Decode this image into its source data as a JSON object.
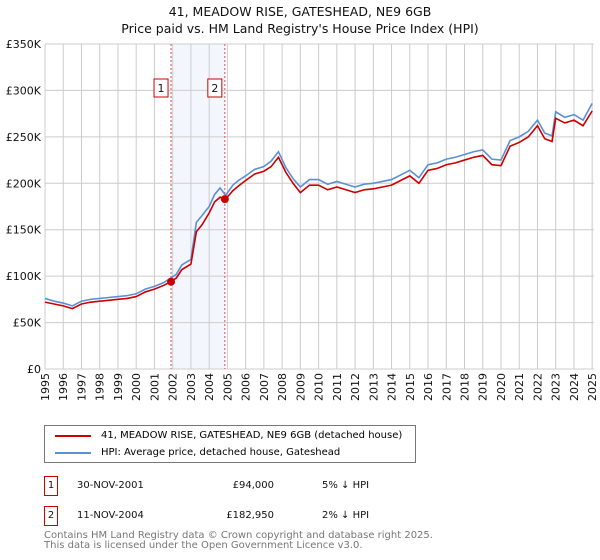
{
  "chart_data": {
    "type": "line",
    "title": "41, MEADOW RISE, GATESHEAD, NE9 6GB",
    "subtitle": "Price paid vs. HM Land Registry's House Price Index (HPI)",
    "xlim": [
      1995,
      2025.1
    ],
    "ylim": [
      0,
      350000
    ],
    "yticks": [
      0,
      50000,
      100000,
      150000,
      200000,
      250000,
      300000,
      350000
    ],
    "ytick_labels": [
      "£0",
      "£50K",
      "£100K",
      "£150K",
      "£200K",
      "£250K",
      "£300K",
      "£350K"
    ],
    "xticks": [
      "1995",
      "1996",
      "1997",
      "1998",
      "1999",
      "2000",
      "2001",
      "2002",
      "2003",
      "2004",
      "2005",
      "2006",
      "2007",
      "2008",
      "2009",
      "2010",
      "2011",
      "2012",
      "2013",
      "2014",
      "2015",
      "2016",
      "2017",
      "2018",
      "2019",
      "2020",
      "2021",
      "2022",
      "2023",
      "2024",
      "2025"
    ],
    "grid": true,
    "x": [
      1995,
      1995.5,
      1996,
      1996.5,
      1997,
      1997.5,
      1998,
      1998.5,
      1999,
      1999.5,
      2000,
      2000.5,
      2001,
      2001.5,
      2001.9,
      2002.2,
      2002.5,
      2003,
      2003.3,
      2003.6,
      2004,
      2004.3,
      2004.6,
      2004.9,
      2005.3,
      2005.6,
      2006,
      2006.5,
      2007,
      2007.4,
      2007.8,
      2008.2,
      2008.6,
      2009,
      2009.5,
      2010,
      2010.5,
      2011,
      2011.5,
      2012,
      2012.5,
      2013,
      2013.5,
      2014,
      2014.5,
      2015,
      2015.5,
      2016,
      2016.5,
      2017,
      2017.5,
      2018,
      2018.5,
      2019,
      2019.5,
      2020,
      2020.5,
      2021,
      2021.5,
      2022,
      2022.4,
      2022.8,
      2023,
      2023.5,
      2024,
      2024.5,
      2025
    ],
    "series": [
      {
        "name": "41, MEADOW RISE, GATESHEAD, NE9 6GB (detached house)",
        "color": "#cc0000",
        "values": [
          72000,
          70000,
          68000,
          65000,
          70000,
          72000,
          73000,
          74000,
          75000,
          76000,
          78000,
          83000,
          86000,
          90000,
          94000,
          98000,
          107000,
          113000,
          148000,
          155000,
          168000,
          180000,
          185000,
          182950,
          192000,
          197000,
          203000,
          210000,
          213000,
          218000,
          228000,
          212000,
          200000,
          190000,
          198000,
          198000,
          193000,
          196000,
          193000,
          190000,
          193000,
          194000,
          196000,
          198000,
          203000,
          208000,
          200000,
          214000,
          216000,
          220000,
          222000,
          225000,
          228000,
          230000,
          220000,
          219000,
          240000,
          244000,
          250000,
          262000,
          248000,
          245000,
          270000,
          265000,
          268000,
          262000,
          278000
        ]
      },
      {
        "name": "HPI: Average price, detached house, Gateshead",
        "color": "#5b8fd6",
        "values": [
          76000,
          73000,
          71000,
          68000,
          73000,
          75000,
          76000,
          77000,
          78000,
          79000,
          81000,
          86000,
          89000,
          93000,
          98000,
          102000,
          112000,
          118000,
          158000,
          165000,
          175000,
          188000,
          195000,
          187000,
          198000,
          203000,
          208000,
          215000,
          218000,
          224000,
          234000,
          217000,
          205000,
          196000,
          204000,
          204000,
          199000,
          202000,
          199000,
          196000,
          199000,
          200000,
          202000,
          204000,
          209000,
          214000,
          206000,
          220000,
          222000,
          226000,
          228000,
          231000,
          234000,
          236000,
          226000,
          225000,
          246000,
          250000,
          256000,
          268000,
          254000,
          251000,
          277000,
          271000,
          274000,
          268000,
          286000
        ]
      }
    ],
    "transactions": [
      {
        "label": "1",
        "x": 2001.91,
        "price": 94000,
        "date": "30-NOV-2001",
        "price_text": "£94,000",
        "hpi_text": "5% ↓ HPI"
      },
      {
        "label": "2",
        "x": 2004.86,
        "price": 182950,
        "date": "11-NOV-2004",
        "price_text": "£182,950",
        "hpi_text": "2% ↓ HPI"
      }
    ],
    "legend": {
      "placement": "bottom"
    }
  },
  "footer": {
    "line1": "Contains HM Land Registry data © Crown copyright and database right 2025.",
    "line2": "This data is licensed under the Open Government Licence v3.0."
  }
}
